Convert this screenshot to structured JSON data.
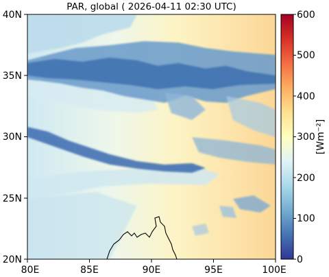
{
  "title": "PAR, global ( 2026-04-11 02:30 UTC)",
  "map": {
    "lat_ticks": [
      "40N",
      "35N",
      "30N",
      "25N",
      "20N"
    ],
    "lon_ticks": [
      "80E",
      "85E",
      "90E",
      "95E",
      "100E"
    ],
    "lat_range": [
      20,
      40
    ],
    "lon_range": [
      80,
      100
    ]
  },
  "colorbar": {
    "ticks": [
      "600",
      "500",
      "400",
      "300",
      "200",
      "100",
      "0"
    ],
    "label": "[Wm⁻²]",
    "range": [
      0,
      600
    ],
    "colors": [
      "#313695",
      "#4575b4",
      "#74add1",
      "#abd9e9",
      "#e0f3f8",
      "#ffffbf",
      "#fee090",
      "#fdae61",
      "#f46d43",
      "#d73027",
      "#a50026"
    ]
  }
}
